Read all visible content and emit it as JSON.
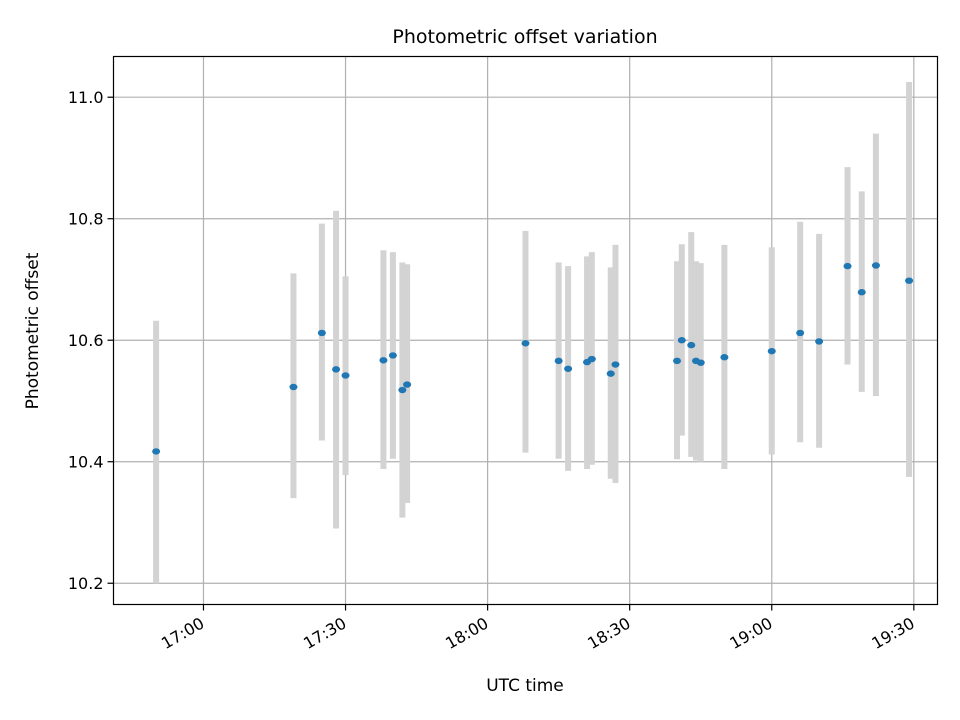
{
  "chart_data": {
    "type": "scatter",
    "title": "Photometric offset variation",
    "xlabel": "UTC time",
    "ylabel": "Photometric offset",
    "x_unit": "UTC time (HH:MM)",
    "xlim": [
      "16:41",
      "19:35"
    ],
    "ylim": [
      10.165,
      11.067
    ],
    "grid": true,
    "x_ticks": [
      "17:00",
      "17:30",
      "18:00",
      "18:30",
      "19:00",
      "19:30"
    ],
    "y_ticks": [
      10.2,
      10.4,
      10.6,
      10.8,
      11.0
    ],
    "y_tick_labels": [
      "10.2",
      "10.4",
      "10.6",
      "10.8",
      "11.0"
    ],
    "point_color": "#1f77b4",
    "errorbar_color": "#d3d3d3",
    "points": [
      {
        "x": "16:50",
        "y": 10.417,
        "low": 10.2,
        "high": 10.632
      },
      {
        "x": "17:19",
        "y": 10.523,
        "low": 10.34,
        "high": 10.71
      },
      {
        "x": "17:25",
        "y": 10.612,
        "low": 10.435,
        "high": 10.792
      },
      {
        "x": "17:28",
        "y": 10.552,
        "low": 10.29,
        "high": 10.813
      },
      {
        "x": "17:30",
        "y": 10.542,
        "low": 10.378,
        "high": 10.705
      },
      {
        "x": "17:38",
        "y": 10.567,
        "low": 10.388,
        "high": 10.748
      },
      {
        "x": "17:40",
        "y": 10.575,
        "low": 10.405,
        "high": 10.745
      },
      {
        "x": "17:42",
        "y": 10.518,
        "low": 10.308,
        "high": 10.728
      },
      {
        "x": "17:43",
        "y": 10.527,
        "low": 10.332,
        "high": 10.725
      },
      {
        "x": "18:08",
        "y": 10.595,
        "low": 10.415,
        "high": 10.78
      },
      {
        "x": "18:15",
        "y": 10.566,
        "low": 10.405,
        "high": 10.728
      },
      {
        "x": "18:17",
        "y": 10.553,
        "low": 10.385,
        "high": 10.722
      },
      {
        "x": "18:21",
        "y": 10.564,
        "low": 10.388,
        "high": 10.738
      },
      {
        "x": "18:22",
        "y": 10.569,
        "low": 10.395,
        "high": 10.745
      },
      {
        "x": "18:26",
        "y": 10.545,
        "low": 10.372,
        "high": 10.72
      },
      {
        "x": "18:27",
        "y": 10.56,
        "low": 10.365,
        "high": 10.757
      },
      {
        "x": "18:40",
        "y": 10.566,
        "low": 10.404,
        "high": 10.73
      },
      {
        "x": "18:41",
        "y": 10.6,
        "low": 10.443,
        "high": 10.758
      },
      {
        "x": "18:43",
        "y": 10.592,
        "low": 10.408,
        "high": 10.778
      },
      {
        "x": "18:44",
        "y": 10.566,
        "low": 10.402,
        "high": 10.73
      },
      {
        "x": "18:45",
        "y": 10.563,
        "low": 10.4,
        "high": 10.727
      },
      {
        "x": "18:50",
        "y": 10.572,
        "low": 10.388,
        "high": 10.757
      },
      {
        "x": "19:00",
        "y": 10.582,
        "low": 10.412,
        "high": 10.753
      },
      {
        "x": "19:06",
        "y": 10.612,
        "low": 10.432,
        "high": 10.795
      },
      {
        "x": "19:10",
        "y": 10.598,
        "low": 10.423,
        "high": 10.775
      },
      {
        "x": "19:16",
        "y": 10.722,
        "low": 10.56,
        "high": 10.885
      },
      {
        "x": "19:19",
        "y": 10.679,
        "low": 10.515,
        "high": 10.845
      },
      {
        "x": "19:22",
        "y": 10.723,
        "low": 10.508,
        "high": 10.94
      },
      {
        "x": "19:29",
        "y": 10.698,
        "low": 10.375,
        "high": 11.025
      }
    ]
  }
}
